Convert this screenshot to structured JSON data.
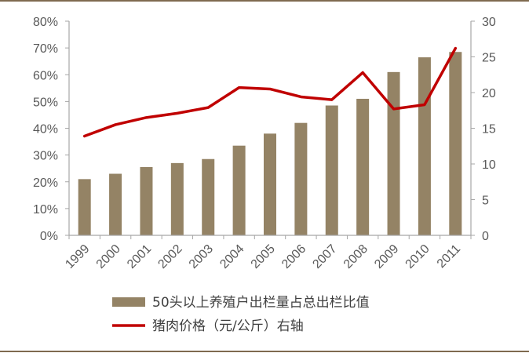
{
  "chart_data": {
    "type": "bar",
    "title": "",
    "categories": [
      "1999",
      "2000",
      "2001",
      "2002",
      "2003",
      "2004",
      "2005",
      "2006",
      "2007",
      "2008",
      "2009",
      "2010",
      "2011"
    ],
    "series": [
      {
        "name": "50头以上养殖户出栏量占总出栏比值",
        "type": "bar",
        "axis": "left",
        "values": [
          0.21,
          0.23,
          0.255,
          0.27,
          0.285,
          0.335,
          0.38,
          0.42,
          0.485,
          0.51,
          0.61,
          0.665,
          0.685
        ]
      },
      {
        "name": "猪肉价格（元/公斤）右轴",
        "type": "line",
        "axis": "right",
        "values": [
          13.9,
          15.5,
          16.5,
          17.1,
          17.9,
          20.7,
          20.5,
          19.4,
          19.0,
          22.8,
          17.7,
          18.3,
          26.2
        ]
      }
    ],
    "left_axis": {
      "ylim": [
        0,
        0.8
      ],
      "ticks": [
        "0%",
        "10%",
        "20%",
        "30%",
        "40%",
        "50%",
        "60%",
        "70%",
        "80%"
      ]
    },
    "right_axis": {
      "ylim": [
        0,
        30
      ],
      "ticks": [
        "0",
        "5",
        "10",
        "15",
        "20",
        "25",
        "30"
      ]
    },
    "grid": false,
    "legend": "bottom",
    "colors": {
      "bar": "#948365",
      "line": "#c00000",
      "border": "#7f6a4f",
      "axis": "#a6a6a6",
      "text": "#595959"
    }
  }
}
